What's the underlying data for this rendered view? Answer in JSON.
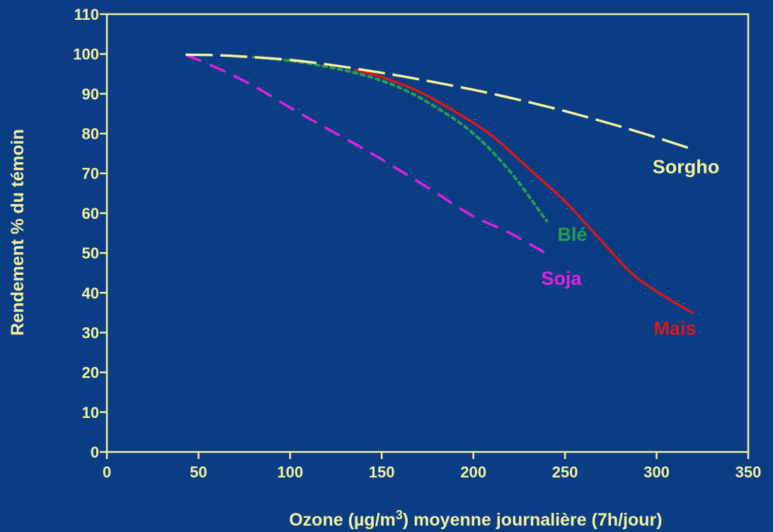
{
  "colors": {
    "background": "#0a3d84",
    "axis": "#f4f0a0",
    "plot_border": "#f4f0a0"
  },
  "chart_data": {
    "type": "line",
    "title": "",
    "xlabel": "Ozone (µg/m",
    "xlabel_sup": "3",
    "xlabel_rest": ") moyenne journalière (7h/jour)",
    "ylabel": "Rendement % du témoin",
    "xlim": [
      0,
      350
    ],
    "ylim": [
      0,
      110
    ],
    "x_ticks": [
      0,
      50,
      100,
      150,
      200,
      250,
      300,
      350
    ],
    "y_ticks": [
      0,
      10,
      20,
      30,
      40,
      50,
      60,
      70,
      80,
      90,
      100,
      110
    ],
    "grid": false,
    "legend": "none",
    "series": [
      {
        "name": "Sorgho",
        "color": "#f4f0a0",
        "dash": "long-dash",
        "label_pos": {
          "x": 316,
          "y": 70
        },
        "x": [
          43,
          60,
          80,
          100,
          120,
          140,
          160,
          180,
          200,
          220,
          240,
          260,
          280,
          300,
          320
        ],
        "y": [
          99.8,
          99.7,
          99.2,
          98.5,
          97.4,
          96.0,
          94.5,
          92.8,
          91.0,
          89.0,
          86.8,
          84.4,
          81.8,
          79.0,
          76.0
        ]
      },
      {
        "name": "Blé",
        "color": "#2a9d50",
        "dash": "dotted",
        "label_pos": {
          "x": 254,
          "y": 53
        },
        "x": [
          80,
          100,
          120,
          140,
          160,
          180,
          200,
          220,
          240
        ],
        "y": [
          99.2,
          98.3,
          96.8,
          94.7,
          91.5,
          86.5,
          80.0,
          70.5,
          58.0
        ]
      },
      {
        "name": "Soja",
        "color": "#e020e0",
        "dash": "dash",
        "label_pos": {
          "x": 248,
          "y": 42
        },
        "x": [
          43,
          60,
          80,
          100,
          120,
          140,
          160,
          180,
          200,
          220,
          243
        ],
        "y": [
          99.8,
          96.5,
          92.0,
          86.5,
          81.3,
          76.2,
          70.7,
          65.0,
          59.2,
          55.0,
          49.0
        ]
      },
      {
        "name": "Mais",
        "color": "#d81818",
        "dash": "solid",
        "label_pos": {
          "x": 310,
          "y": 29.5
        },
        "x": [
          135,
          150,
          170,
          190,
          210,
          230,
          250,
          270,
          290,
          320
        ],
        "y": [
          96.0,
          94.2,
          90.6,
          85.5,
          79.5,
          71.3,
          63.0,
          53.0,
          43.5,
          34.8
        ]
      }
    ]
  }
}
